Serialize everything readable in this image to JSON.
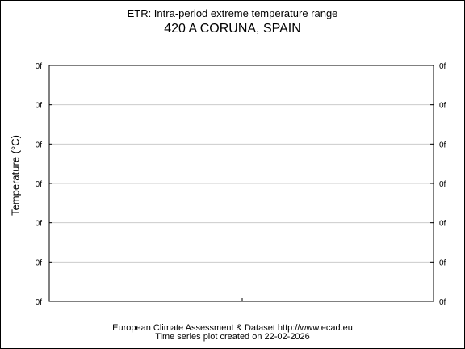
{
  "header": {
    "title": "ETR: Intra-period extreme temperature range",
    "subtitle": "420 A CORUNA, SPAIN"
  },
  "footer": {
    "source": "European Climate Assessment & Dataset  http://www.ecad.eu",
    "created": "Time series plot created on 22-02-2026"
  },
  "chart_data": {
    "type": "line",
    "title": "ETR: Intra-period extreme temperature range",
    "subtitle": "420 A CORUNA, SPAIN",
    "ylabel": "Temperature (°C)",
    "xlabel": "",
    "y_tick_labels": [
      "0f",
      "0f",
      "0f",
      "0f",
      "0f",
      "0f",
      "0f"
    ],
    "x_tick_labels": [],
    "series": [],
    "grid": "horizontal",
    "legend": "none",
    "colors": {
      "axis": "#000000",
      "grid": "#cccccc"
    }
  }
}
